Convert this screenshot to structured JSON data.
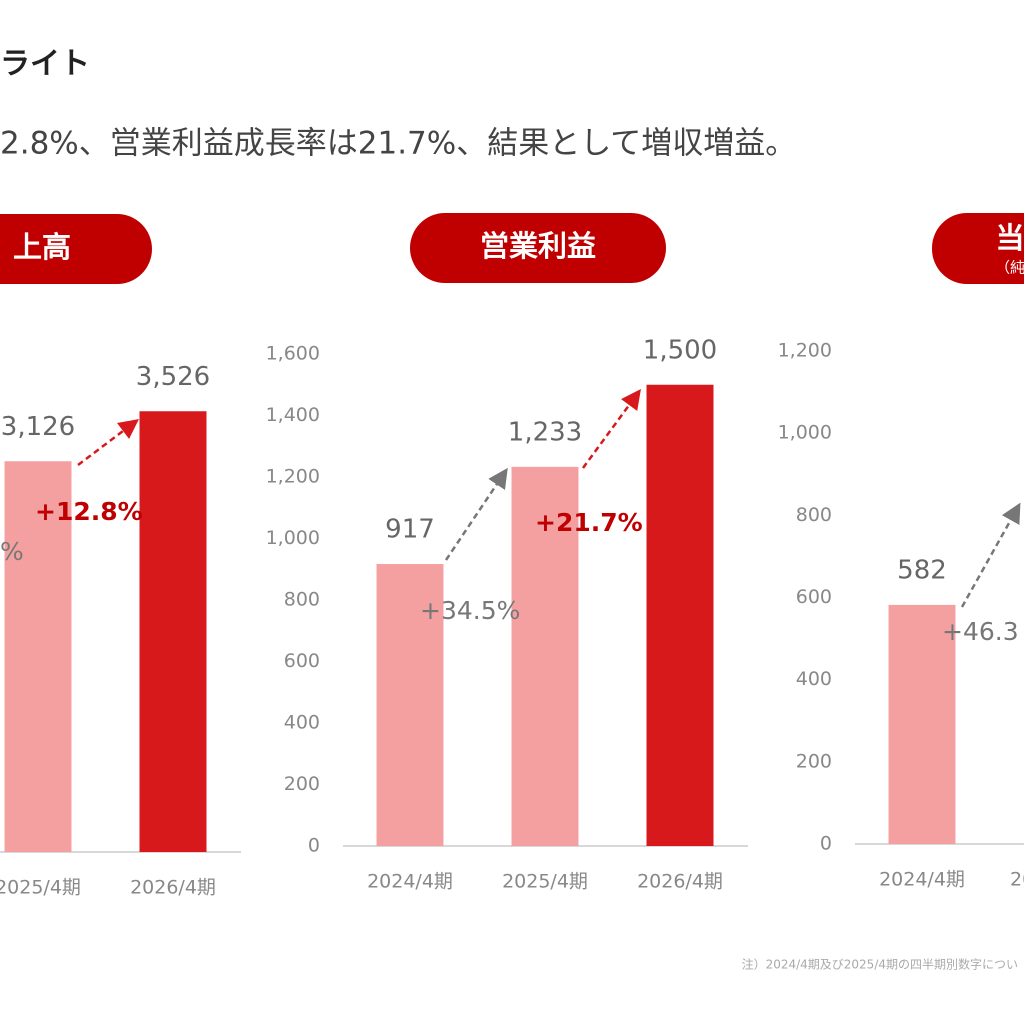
{
  "header": {
    "title": "ライト",
    "subtitle": "2.8%、営業利益成長率は21.7%、結果として増収増益。"
  },
  "chart_data": [
    {
      "type": "bar",
      "title": "上高",
      "categories": [
        "2025/4期",
        "2026/4期"
      ],
      "values": [
        3126,
        3526
      ],
      "value_labels": [
        "3,126",
        "3,526"
      ],
      "colors": [
        "#f4a0a0",
        "#d7191c"
      ],
      "ylim": [
        0,
        4000
      ],
      "annotations": [
        {
          "text": "%",
          "color": "#777777",
          "bold": false
        },
        {
          "text": "+12.8%",
          "color": "#c00000",
          "bold": true
        }
      ]
    },
    {
      "type": "bar",
      "title": "営業利益",
      "categories": [
        "2024/4期",
        "2025/4期",
        "2026/4期"
      ],
      "values": [
        917,
        1233,
        1500
      ],
      "value_labels": [
        "917",
        "1,233",
        "1,500"
      ],
      "colors": [
        "#f4a0a0",
        "#f4a0a0",
        "#d7191c"
      ],
      "ylim": [
        0,
        1600
      ],
      "yticks": [
        0,
        200,
        400,
        600,
        800,
        {
          "value": 1000,
          "label": "1,000"
        },
        {
          "value": 1200,
          "label": "1,200"
        },
        {
          "value": 1400,
          "label": "1,400"
        },
        {
          "value": 1600,
          "label": "1,600"
        }
      ],
      "annotations": [
        {
          "text": "+34.5%",
          "color": "#777777",
          "bold": false
        },
        {
          "text": "+21.7%",
          "color": "#c00000",
          "bold": true
        }
      ]
    },
    {
      "type": "bar",
      "title": "当",
      "subtitle": "（純",
      "categories": [
        "2024/4期",
        "20"
      ],
      "values": [
        582,
        null
      ],
      "value_labels": [
        "582",
        null
      ],
      "colors": [
        "#f4a0a0",
        "#f4a0a0"
      ],
      "ylim": [
        0,
        1200
      ],
      "yticks": [
        0,
        200,
        400,
        600,
        800,
        {
          "value": 1000,
          "label": "1,000"
        },
        {
          "value": 1200,
          "label": "1,200"
        }
      ],
      "annotations": [
        {
          "text": "+46.3",
          "color": "#777777",
          "bold": false
        }
      ]
    }
  ],
  "footnote": "注）2024/4期及び2025/4期の四半期別数字につい"
}
